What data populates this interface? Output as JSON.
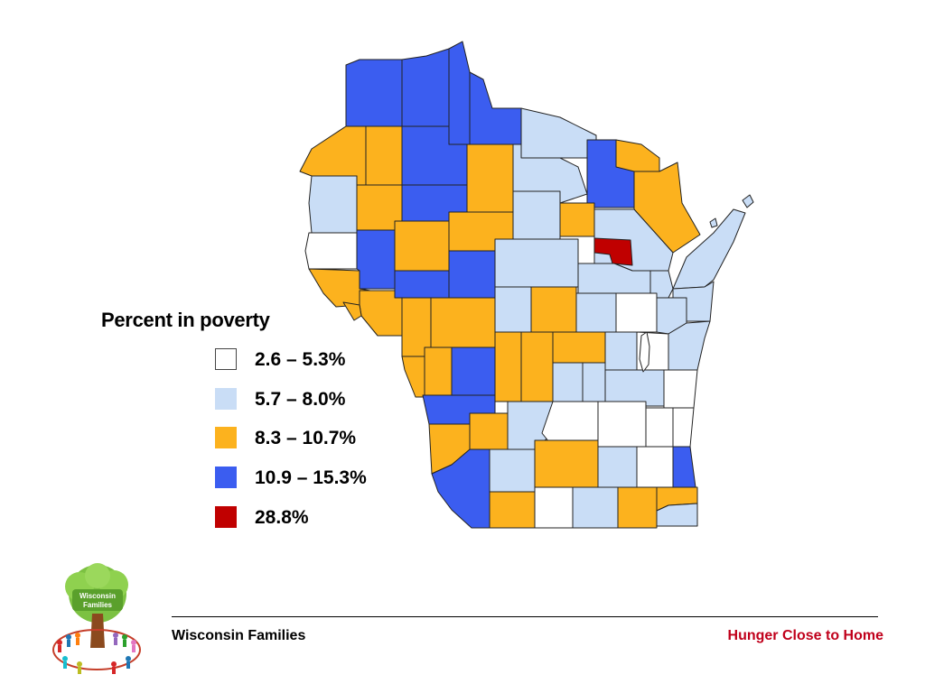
{
  "legend": {
    "title": "Percent in poverty",
    "items": [
      {
        "label": "2.6 – 5.3%",
        "color": "#ffffff"
      },
      {
        "label": "5.7 – 8.0%",
        "color": "#c9ddf6"
      },
      {
        "label": "8.3 – 10.7%",
        "color": "#fcb21e"
      },
      {
        "label": "10.9 – 15.3%",
        "color": "#3b5df0"
      },
      {
        "label": "28.8%",
        "color": "#c00000"
      }
    ]
  },
  "footer": {
    "left": "Wisconsin Families",
    "right": "Hunger Close to Home"
  },
  "logo": {
    "text": "Wisconsin Families"
  }
}
